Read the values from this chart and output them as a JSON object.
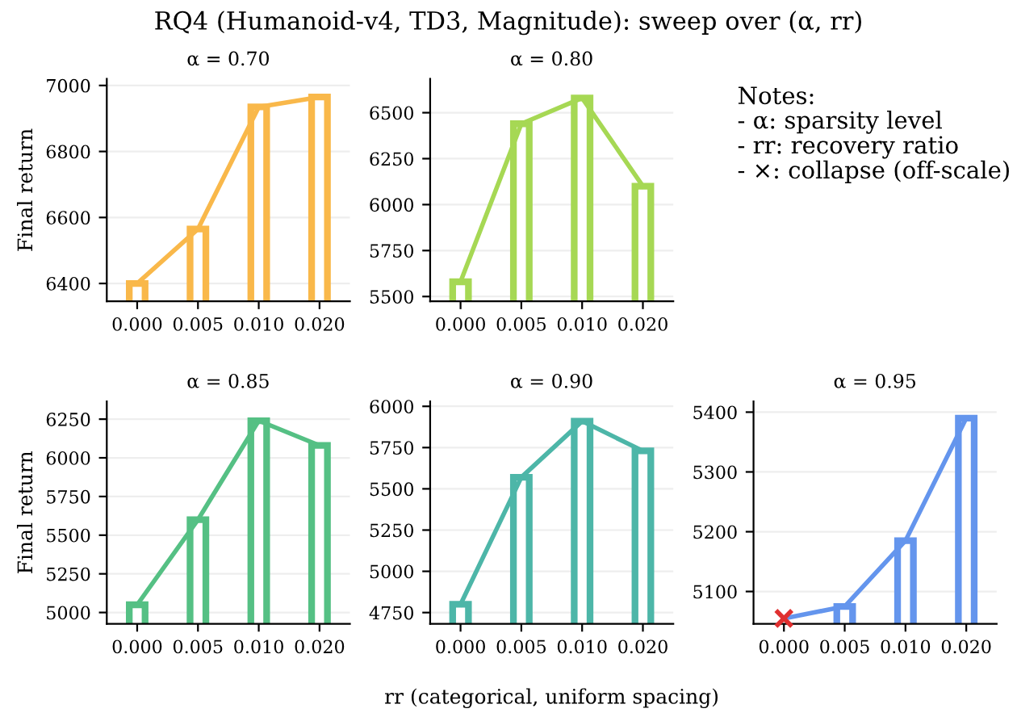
{
  "chart_data": [
    {
      "type": "bar",
      "title": "α = 0.70",
      "ylabel": "Final return",
      "categories": [
        "0.000",
        "0.005",
        "0.010",
        "0.020"
      ],
      "ylim": [
        6346,
        7020
      ],
      "yticks": [
        6400,
        6600,
        6800,
        7000
      ],
      "grid": "y",
      "series": [
        {
          "type": "bar",
          "color": "#f9b84a",
          "values": [
            6400,
            6565,
            6935,
            6965
          ]
        },
        {
          "type": "line",
          "color": "#f9b84a",
          "values": [
            6400,
            6565,
            6935,
            6965
          ]
        }
      ]
    },
    {
      "type": "bar",
      "title": "α = 0.80",
      "categories": [
        "0.000",
        "0.005",
        "0.010",
        "0.020"
      ],
      "ylim": [
        5474,
        6684
      ],
      "yticks": [
        5500,
        5750,
        6000,
        6250,
        6500
      ],
      "grid": "y",
      "series": [
        {
          "type": "bar",
          "color": "#a6d854",
          "values": [
            5580,
            6440,
            6580,
            6100
          ]
        },
        {
          "type": "line",
          "color": "#a6d854",
          "values": [
            5580,
            6440,
            6580,
            6100
          ]
        }
      ]
    },
    {
      "type": "bar",
      "title": "α = 0.85",
      "ylabel": "Final return",
      "categories": [
        "0.000",
        "0.005",
        "0.010",
        "0.020"
      ],
      "ylim": [
        4927,
        6365
      ],
      "yticks": [
        5000,
        5250,
        5500,
        5750,
        6000,
        6250
      ],
      "grid": "y",
      "series": [
        {
          "type": "bar",
          "color": "#55c084",
          "values": [
            5050,
            5600,
            6240,
            6080
          ]
        },
        {
          "type": "line",
          "color": "#55c084",
          "values": [
            5050,
            5600,
            6240,
            6080
          ]
        }
      ]
    },
    {
      "type": "bar",
      "title": "α = 0.90",
      "xlabel": "rr (categorical, uniform spacing)",
      "categories": [
        "0.000",
        "0.005",
        "0.010",
        "0.020"
      ],
      "ylim": [
        4682,
        6030
      ],
      "yticks": [
        4750,
        5000,
        5250,
        5500,
        5750,
        6000
      ],
      "grid": "y",
      "series": [
        {
          "type": "bar",
          "color": "#4db6a8",
          "values": [
            4800,
            5570,
            5910,
            5730
          ]
        },
        {
          "type": "line",
          "color": "#4db6a8",
          "values": [
            4800,
            5570,
            5910,
            5730
          ]
        }
      ]
    },
    {
      "type": "bar",
      "title": "α = 0.95",
      "categories": [
        "0.000",
        "0.005",
        "0.010",
        "0.020"
      ],
      "ylim": [
        5046,
        5418
      ],
      "yticks": [
        5100,
        5200,
        5300,
        5400
      ],
      "grid": "y",
      "series": [
        {
          "type": "bar",
          "color": "#6495ed",
          "values": [
            null,
            5075,
            5185,
            5390
          ]
        },
        {
          "type": "line",
          "color": "#6495ed",
          "values": [
            5055,
            5075,
            5185,
            5390
          ]
        },
        {
          "type": "scatter",
          "color": "#e03030",
          "marker": "cross",
          "values": [
            5055,
            null,
            null,
            null
          ]
        }
      ]
    },
    {
      "type": "other",
      "title": "RQ4 (Humanoid-v4, TD3, Magnitude): sweep over (α, rr)",
      "annotations": [
        "Notes:\n- α: sparsity level\n- rr: recovery ratio\n- ×: collapse (off-scale)"
      ]
    }
  ]
}
